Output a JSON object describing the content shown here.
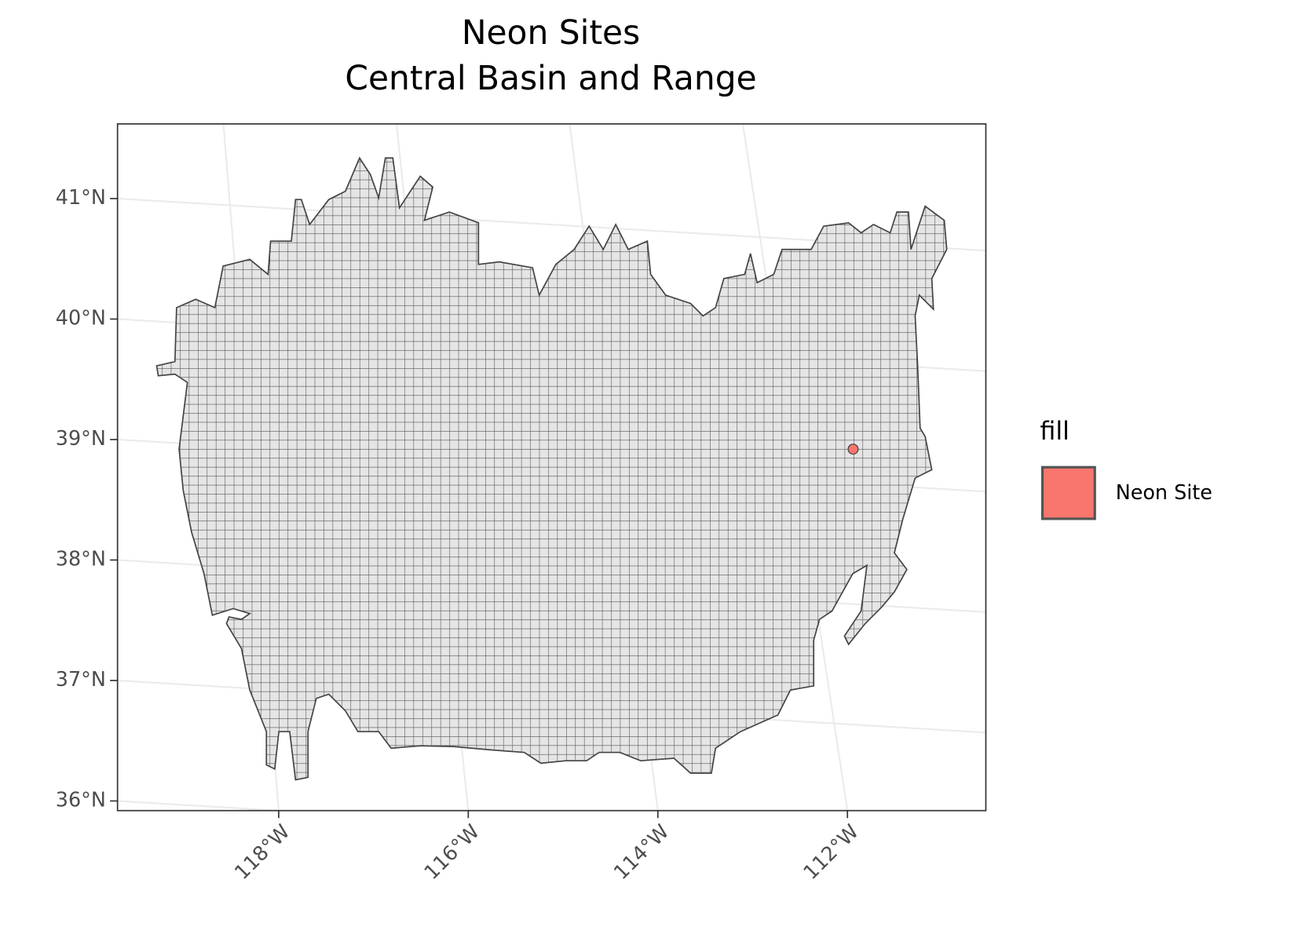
{
  "chart_data": {
    "type": "map",
    "title": [
      "Neon Sites",
      "Central Basin and Range"
    ],
    "xlim": [
      -119.7,
      -110.54
    ],
    "ylim": [
      35.92,
      41.62
    ],
    "xticks": [
      {
        "value": -118,
        "label": "118°W"
      },
      {
        "value": -116,
        "label": "116°W"
      },
      {
        "value": -114,
        "label": "114°W"
      },
      {
        "value": -112,
        "label": "112°W"
      }
    ],
    "yticks": [
      {
        "value": 36,
        "label": "36°N"
      },
      {
        "value": 37,
        "label": "37°N"
      },
      {
        "value": 38,
        "label": "38°N"
      },
      {
        "value": 39,
        "label": "39°N"
      },
      {
        "value": 40,
        "label": "40°N"
      },
      {
        "value": 41,
        "label": "41°N"
      }
    ],
    "grid": true,
    "legend_title": "fill",
    "series": [
      {
        "name": "Neon Site",
        "color": "#f8766d",
        "x": [
          -111.94
        ],
        "y": [
          38.92
        ]
      }
    ]
  }
}
